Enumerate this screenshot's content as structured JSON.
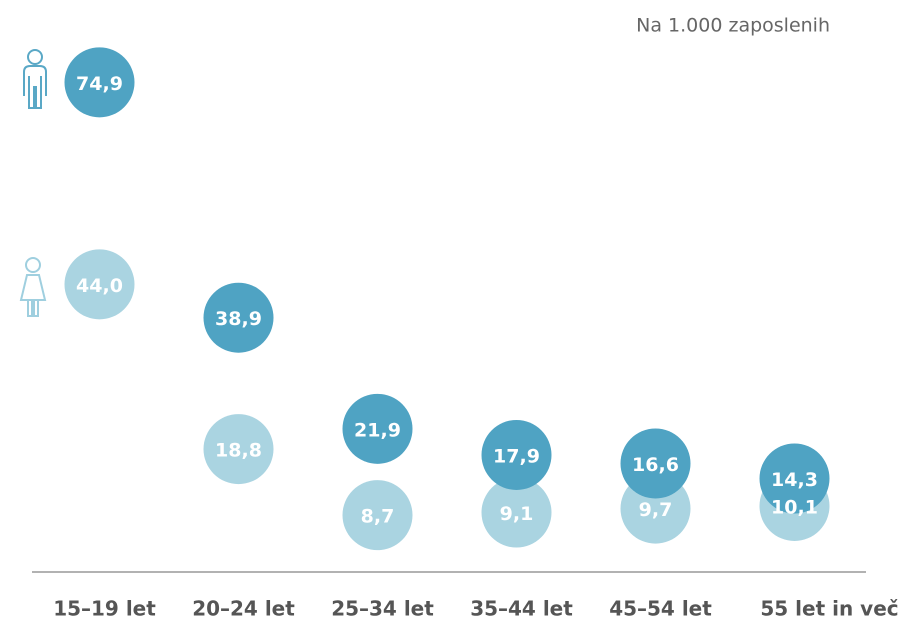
{
  "chart_data": {
    "type": "dot",
    "subtitle": "Na 1.000 zaposlenih",
    "categories": [
      "15–19 let",
      "20–24 let",
      "25–34 let",
      "35–44 let",
      "45–54 let",
      "55 let in več"
    ],
    "series": [
      {
        "color": "#aad4e1",
        "values": [
          44.0,
          18.8,
          8.7,
          9.1,
          9.7,
          10.1
        ],
        "value_labels": [
          "44,0",
          "18,8",
          "8,7",
          "9,1",
          "9,7",
          "10,1"
        ]
      },
      {
        "color": "#4fa3c3",
        "values": [
          74.9,
          38.9,
          21.9,
          17.9,
          16.6,
          14.3
        ],
        "value_labels": [
          "74,9",
          "38,9",
          "21,9",
          "17,9",
          "16,6",
          "14,3"
        ]
      }
    ],
    "ylim": [
      0,
      80
    ]
  }
}
